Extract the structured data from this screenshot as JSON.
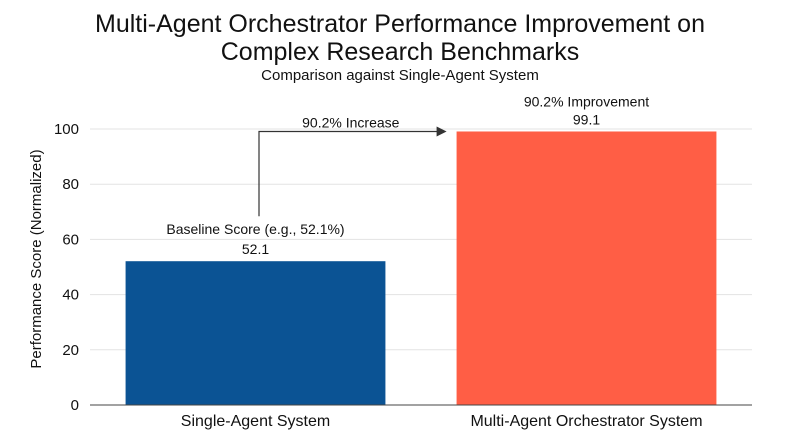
{
  "chart_data": {
    "type": "bar",
    "title_lines": [
      "Multi-Agent Orchestrator Performance Improvement on",
      "Complex Research Benchmarks"
    ],
    "subtitle": "Comparison against Single-Agent System",
    "categories": [
      "Single-Agent System",
      "Multi-Agent Orchestrator System"
    ],
    "values": [
      52.1,
      99.1
    ],
    "value_labels": [
      "52.1",
      "99.1"
    ],
    "bar_colors": [
      "#0b5394",
      "#ff5e45"
    ],
    "annotations": {
      "baseline": "Baseline Score (e.g., 52.1%)",
      "improvement": "90.2% Improvement",
      "increase_arrow": "90.2% Increase"
    },
    "xlabel": "",
    "ylabel": "Performance Score (Normalized)",
    "ylim": [
      0,
      100
    ],
    "yticks": [
      0,
      20,
      40,
      60,
      80,
      100
    ],
    "grid": true,
    "legend": "none"
  }
}
